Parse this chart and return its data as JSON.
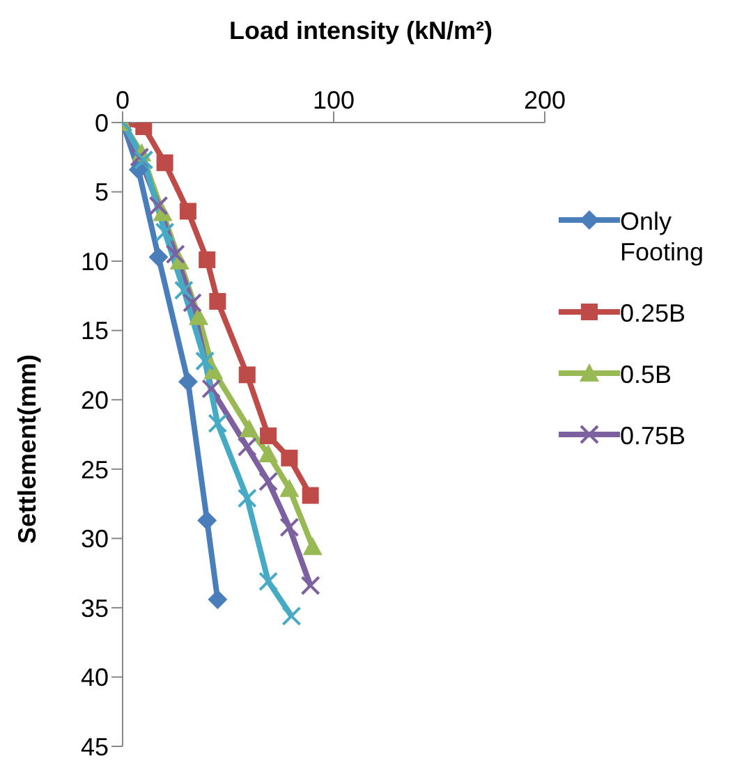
{
  "chart_data": {
    "type": "line",
    "xlabel": "Load intensity (kN/m²)",
    "ylabel": "Settlement(mm)",
    "xlim": [
      0,
      200
    ],
    "xticks": [
      0,
      100,
      200
    ],
    "ylim": [
      45,
      0
    ],
    "yticks": [
      0,
      5,
      10,
      15,
      20,
      25,
      30,
      35,
      40,
      45
    ],
    "grid": false,
    "legend": "right",
    "line_style": "solid",
    "series": [
      {
        "name": "Only Footing",
        "color": "#4a7ebb",
        "marker": "diamond",
        "x": [
          0,
          7.5,
          17,
          31,
          40,
          45
        ],
        "values": [
          0,
          3.4,
          9.7,
          18.7,
          28.7,
          34.4
        ]
      },
      {
        "name": "0.25B",
        "color": "#be4b48",
        "marker": "square",
        "x": [
          0,
          10,
          20,
          31,
          40,
          45,
          59,
          69,
          79,
          89
        ],
        "values": [
          0,
          0.3,
          2.9,
          6.4,
          9.9,
          12.9,
          18.2,
          22.6,
          24.2,
          26.9
        ]
      },
      {
        "name": "0.5B",
        "color": "#98b954",
        "marker": "triangle",
        "x": [
          0,
          9,
          19,
          27,
          36,
          43,
          60,
          69,
          79,
          90
        ],
        "values": [
          0,
          2.2,
          6.5,
          10,
          14,
          17.9,
          22.1,
          23.9,
          26.4,
          30.6
        ]
      },
      {
        "name": "0.75B",
        "color": "#7d60a0",
        "marker": "cross",
        "x": [
          0,
          8,
          17,
          25,
          33,
          42,
          59,
          69,
          79,
          89
        ],
        "values": [
          0,
          2.5,
          6,
          9.5,
          13,
          19.2,
          23.4,
          25.9,
          29.2,
          33.4
        ]
      },
      {
        "color": "#46aac5",
        "marker": "cross",
        "x": [
          0,
          10,
          20,
          29,
          39,
          45,
          59,
          69,
          80
        ],
        "values": [
          0,
          2.7,
          7.9,
          12.1,
          17.2,
          21.7,
          27.1,
          33.1,
          35.6
        ]
      }
    ]
  }
}
